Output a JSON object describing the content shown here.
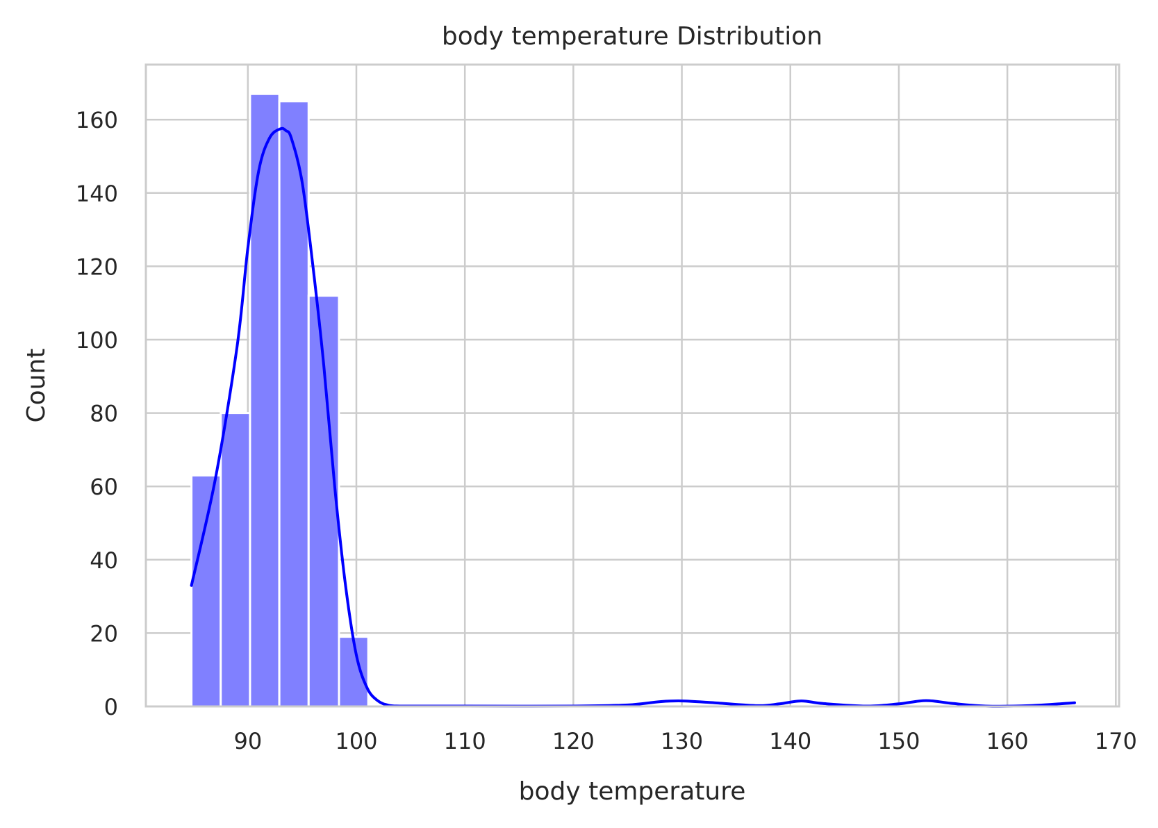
{
  "chart_data": {
    "type": "bar",
    "title": "body temperature Distribution",
    "xlabel": "body temperature",
    "ylabel": "Count",
    "xlim": [
      80.6,
      170.3
    ],
    "ylim": [
      0,
      175
    ],
    "x_ticks": [
      "90",
      "100",
      "110",
      "120",
      "130",
      "140",
      "150",
      "160",
      "170"
    ],
    "y_ticks": [
      "0",
      "20",
      "40",
      "60",
      "80",
      "100",
      "120",
      "140",
      "160"
    ],
    "x_tick_values": [
      90,
      100,
      110,
      120,
      130,
      140,
      150,
      160,
      170
    ],
    "y_tick_values": [
      0,
      20,
      40,
      60,
      80,
      100,
      120,
      140,
      160
    ],
    "grid": true,
    "bar_color": "#8080ff",
    "kde_color": "#0000ff",
    "bins": [
      {
        "x0": 84.8,
        "x1": 87.5,
        "count": 63
      },
      {
        "x0": 87.5,
        "x1": 90.2,
        "count": 80
      },
      {
        "x0": 90.2,
        "x1": 92.9,
        "count": 167
      },
      {
        "x0": 92.9,
        "x1": 95.6,
        "count": 165
      },
      {
        "x0": 95.6,
        "x1": 98.4,
        "count": 112
      },
      {
        "x0": 98.4,
        "x1": 101.1,
        "count": 19
      }
    ],
    "kde": {
      "x": [
        84.8,
        87.0,
        89.0,
        90.0,
        91.0,
        92.0,
        93.0,
        93.5,
        94.0,
        95.0,
        96.0,
        97.0,
        98.0,
        99.0,
        100.0,
        101.0,
        102.0,
        103.0,
        104.0,
        106.0,
        110.0,
        120.0,
        125.0,
        128.0,
        130.0,
        133.0,
        137.0,
        139.0,
        141.0,
        143.0,
        147.0,
        150.0,
        152.5,
        155.0,
        158.0,
        162.0,
        166.2
      ],
      "y": [
        33,
        62,
        98,
        125,
        146,
        155,
        157.5,
        157,
        155,
        143,
        120,
        93,
        60,
        33,
        14,
        5,
        1.5,
        0.3,
        0.1,
        0.1,
        0.1,
        0.1,
        0.4,
        1.3,
        1.5,
        1.0,
        0.2,
        0.7,
        1.5,
        0.8,
        0.1,
        0.7,
        1.6,
        0.8,
        0.1,
        0.2,
        1.0
      ]
    }
  }
}
